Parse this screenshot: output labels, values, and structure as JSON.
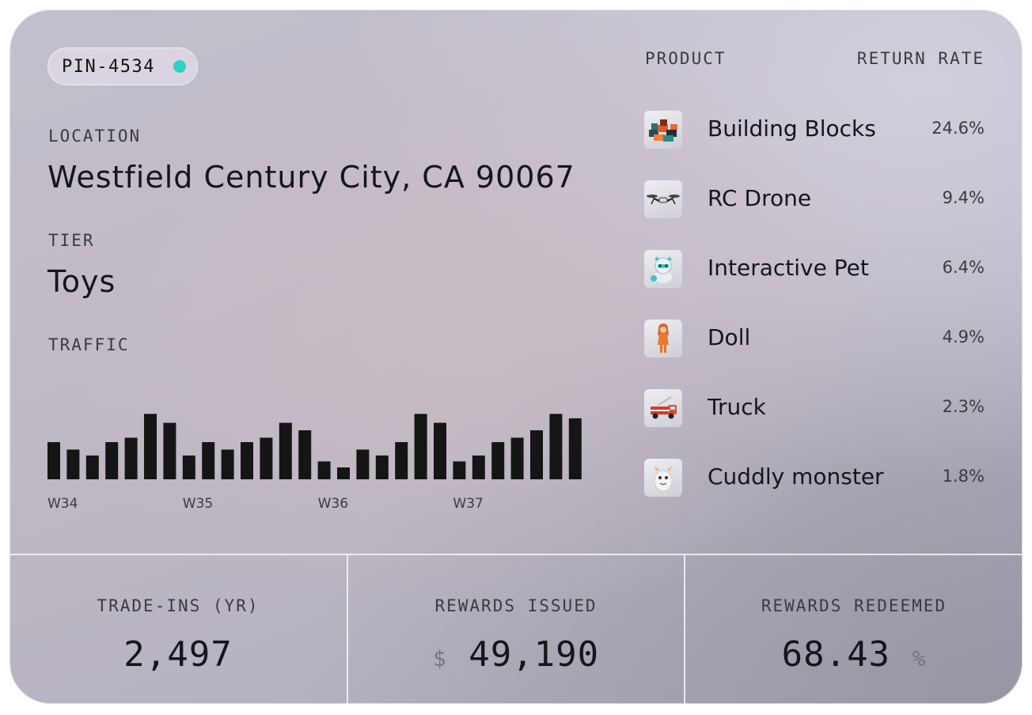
{
  "store": {
    "pin": "PIN-4534",
    "status_color": "#2ed1c3",
    "location_label": "LOCATION",
    "location": "Westfield Century City, CA 90067",
    "tier_label": "TIER",
    "tier": "Toys"
  },
  "traffic": {
    "label": "TRAFFIC",
    "week_labels": [
      "W34",
      "W35",
      "W36",
      "W37"
    ]
  },
  "chart_data": {
    "type": "bar",
    "title": "TRAFFIC",
    "x_tick_labels": [
      "W34",
      "W35",
      "W36",
      "W37"
    ],
    "bars_per_week": 7,
    "values": [
      50,
      40,
      32,
      50,
      56,
      88,
      76,
      32,
      50,
      40,
      50,
      56,
      76,
      66,
      24,
      16,
      40,
      32,
      50,
      88,
      76,
      24,
      32,
      50,
      56,
      66,
      88,
      82
    ],
    "ylim": [
      0,
      100
    ],
    "bar_color": "#151515",
    "grid": false
  },
  "products": {
    "header_product": "PRODUCT",
    "header_rate": "RETURN RATE",
    "items": [
      {
        "name": "Building Blocks",
        "rate": "24.6%",
        "icon": "building-blocks-icon"
      },
      {
        "name": "RC Drone",
        "rate": "9.4%",
        "icon": "drone-icon"
      },
      {
        "name": "Interactive Pet",
        "rate": "6.4%",
        "icon": "robot-pet-icon"
      },
      {
        "name": "Doll",
        "rate": "4.9%",
        "icon": "doll-icon"
      },
      {
        "name": "Truck",
        "rate": "2.3%",
        "icon": "truck-icon"
      },
      {
        "name": "Cuddly monster",
        "rate": "1.8%",
        "icon": "monster-icon"
      }
    ]
  },
  "stats": {
    "trade_ins_label": "TRADE-INS (YR)",
    "trade_ins": "2,497",
    "rewards_issued_label": "REWARDS ISSUED",
    "rewards_issued_currency": "$",
    "rewards_issued": "49,190",
    "rewards_redeemed_label": "REWARDS REDEEMED",
    "rewards_redeemed": "68.43",
    "rewards_redeemed_unit": "%"
  }
}
